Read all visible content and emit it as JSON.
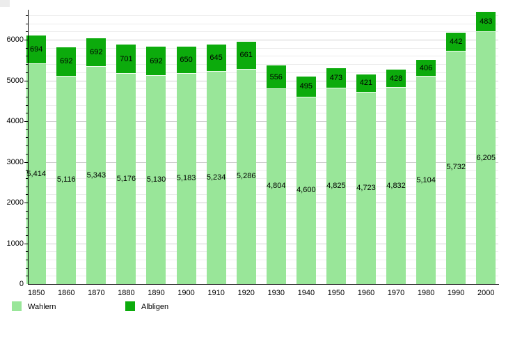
{
  "chart_data": {
    "type": "bar",
    "stacked": true,
    "title": "",
    "xlabel": "",
    "ylabel": "",
    "grid": true,
    "legend_position": "bottom",
    "categories": [
      "1850",
      "1860",
      "1870",
      "1880",
      "1890",
      "1900",
      "1910",
      "1920",
      "1930",
      "1940",
      "1950",
      "1960",
      "1970",
      "1980",
      "1990",
      "2000"
    ],
    "series": [
      {
        "name": "Wahlern",
        "color": "#99e699",
        "values": [
          5414,
          5116,
          5343,
          5176,
          5130,
          5183,
          5234,
          5286,
          4804,
          4600,
          4825,
          4723,
          4832,
          5104,
          5732,
          6205
        ],
        "labels": [
          "5,414",
          "5,116",
          "5,343",
          "5,176",
          "5,130",
          "5,183",
          "5,234",
          "5,286",
          "4,804",
          "4,600",
          "4,825",
          "4,723",
          "4,832",
          "5,104",
          "5,732",
          "6,205"
        ]
      },
      {
        "name": "Albligen",
        "color": "#0cab0c",
        "values": [
          694,
          692,
          692,
          701,
          692,
          650,
          645,
          661,
          556,
          495,
          473,
          421,
          428,
          406,
          442,
          483
        ],
        "labels": [
          "694",
          "692",
          "692",
          "701",
          "692",
          "650",
          "645",
          "661",
          "556",
          "495",
          "473",
          "421",
          "428",
          "406",
          "442",
          "483"
        ]
      }
    ],
    "y_axis": {
      "tick_labels": [
        "0",
        "1000",
        "2000",
        "3000",
        "4000",
        "5000",
        "6000"
      ],
      "tick_values": [
        0,
        1000,
        2000,
        3000,
        4000,
        5000,
        6000
      ],
      "minor_step": 200,
      "max_gridline": 6600,
      "ylim": [
        0,
        6735
      ]
    }
  },
  "legend": {
    "wahlern_label": "Wahlern",
    "albligen_label": "Albligen"
  },
  "colors": {
    "wahlern": "#99e699",
    "albligen": "#0cab0c",
    "grid_minor": "#ebebeb",
    "grid_major": "#cfcfcf",
    "axis": "#000000",
    "text": "#000000",
    "background": "#ffffff"
  }
}
